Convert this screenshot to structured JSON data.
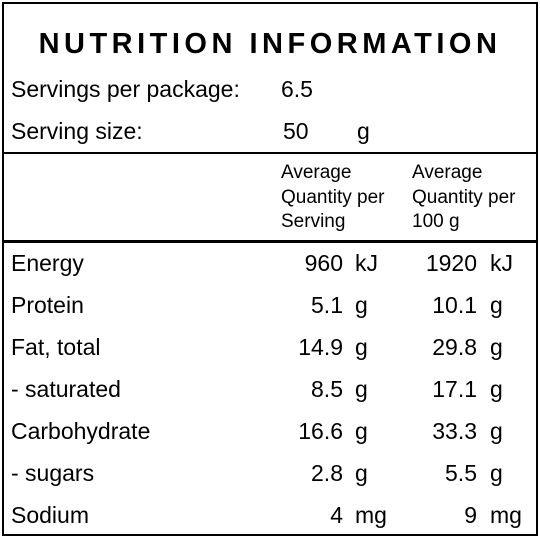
{
  "title": "NUTRITION INFORMATION",
  "servings": {
    "label": "Servings per package:",
    "value": "6.5"
  },
  "serving_size": {
    "label": "Serving size:",
    "value": "50",
    "unit": "g"
  },
  "table": {
    "headers": [
      [
        "Average",
        "Quantity per",
        "Serving"
      ],
      [
        "Average",
        "Quantity per",
        "100 g"
      ]
    ],
    "rows": [
      [
        "Energy",
        "960",
        "kJ",
        "1920",
        "kJ"
      ],
      [
        "Protein",
        "5.1",
        "g",
        "10.1",
        "g"
      ],
      [
        "Fat, total",
        "14.9",
        "g",
        "29.8",
        "g"
      ],
      [
        "- saturated",
        "8.5",
        "g",
        "17.1",
        "g"
      ],
      [
        "Carbohydrate",
        "16.6",
        "g",
        "33.3",
        "g"
      ],
      [
        "- sugars",
        "2.8",
        "g",
        "5.5",
        "g"
      ],
      [
        "Sodium",
        "4",
        "mg",
        "9",
        "mg"
      ]
    ]
  }
}
